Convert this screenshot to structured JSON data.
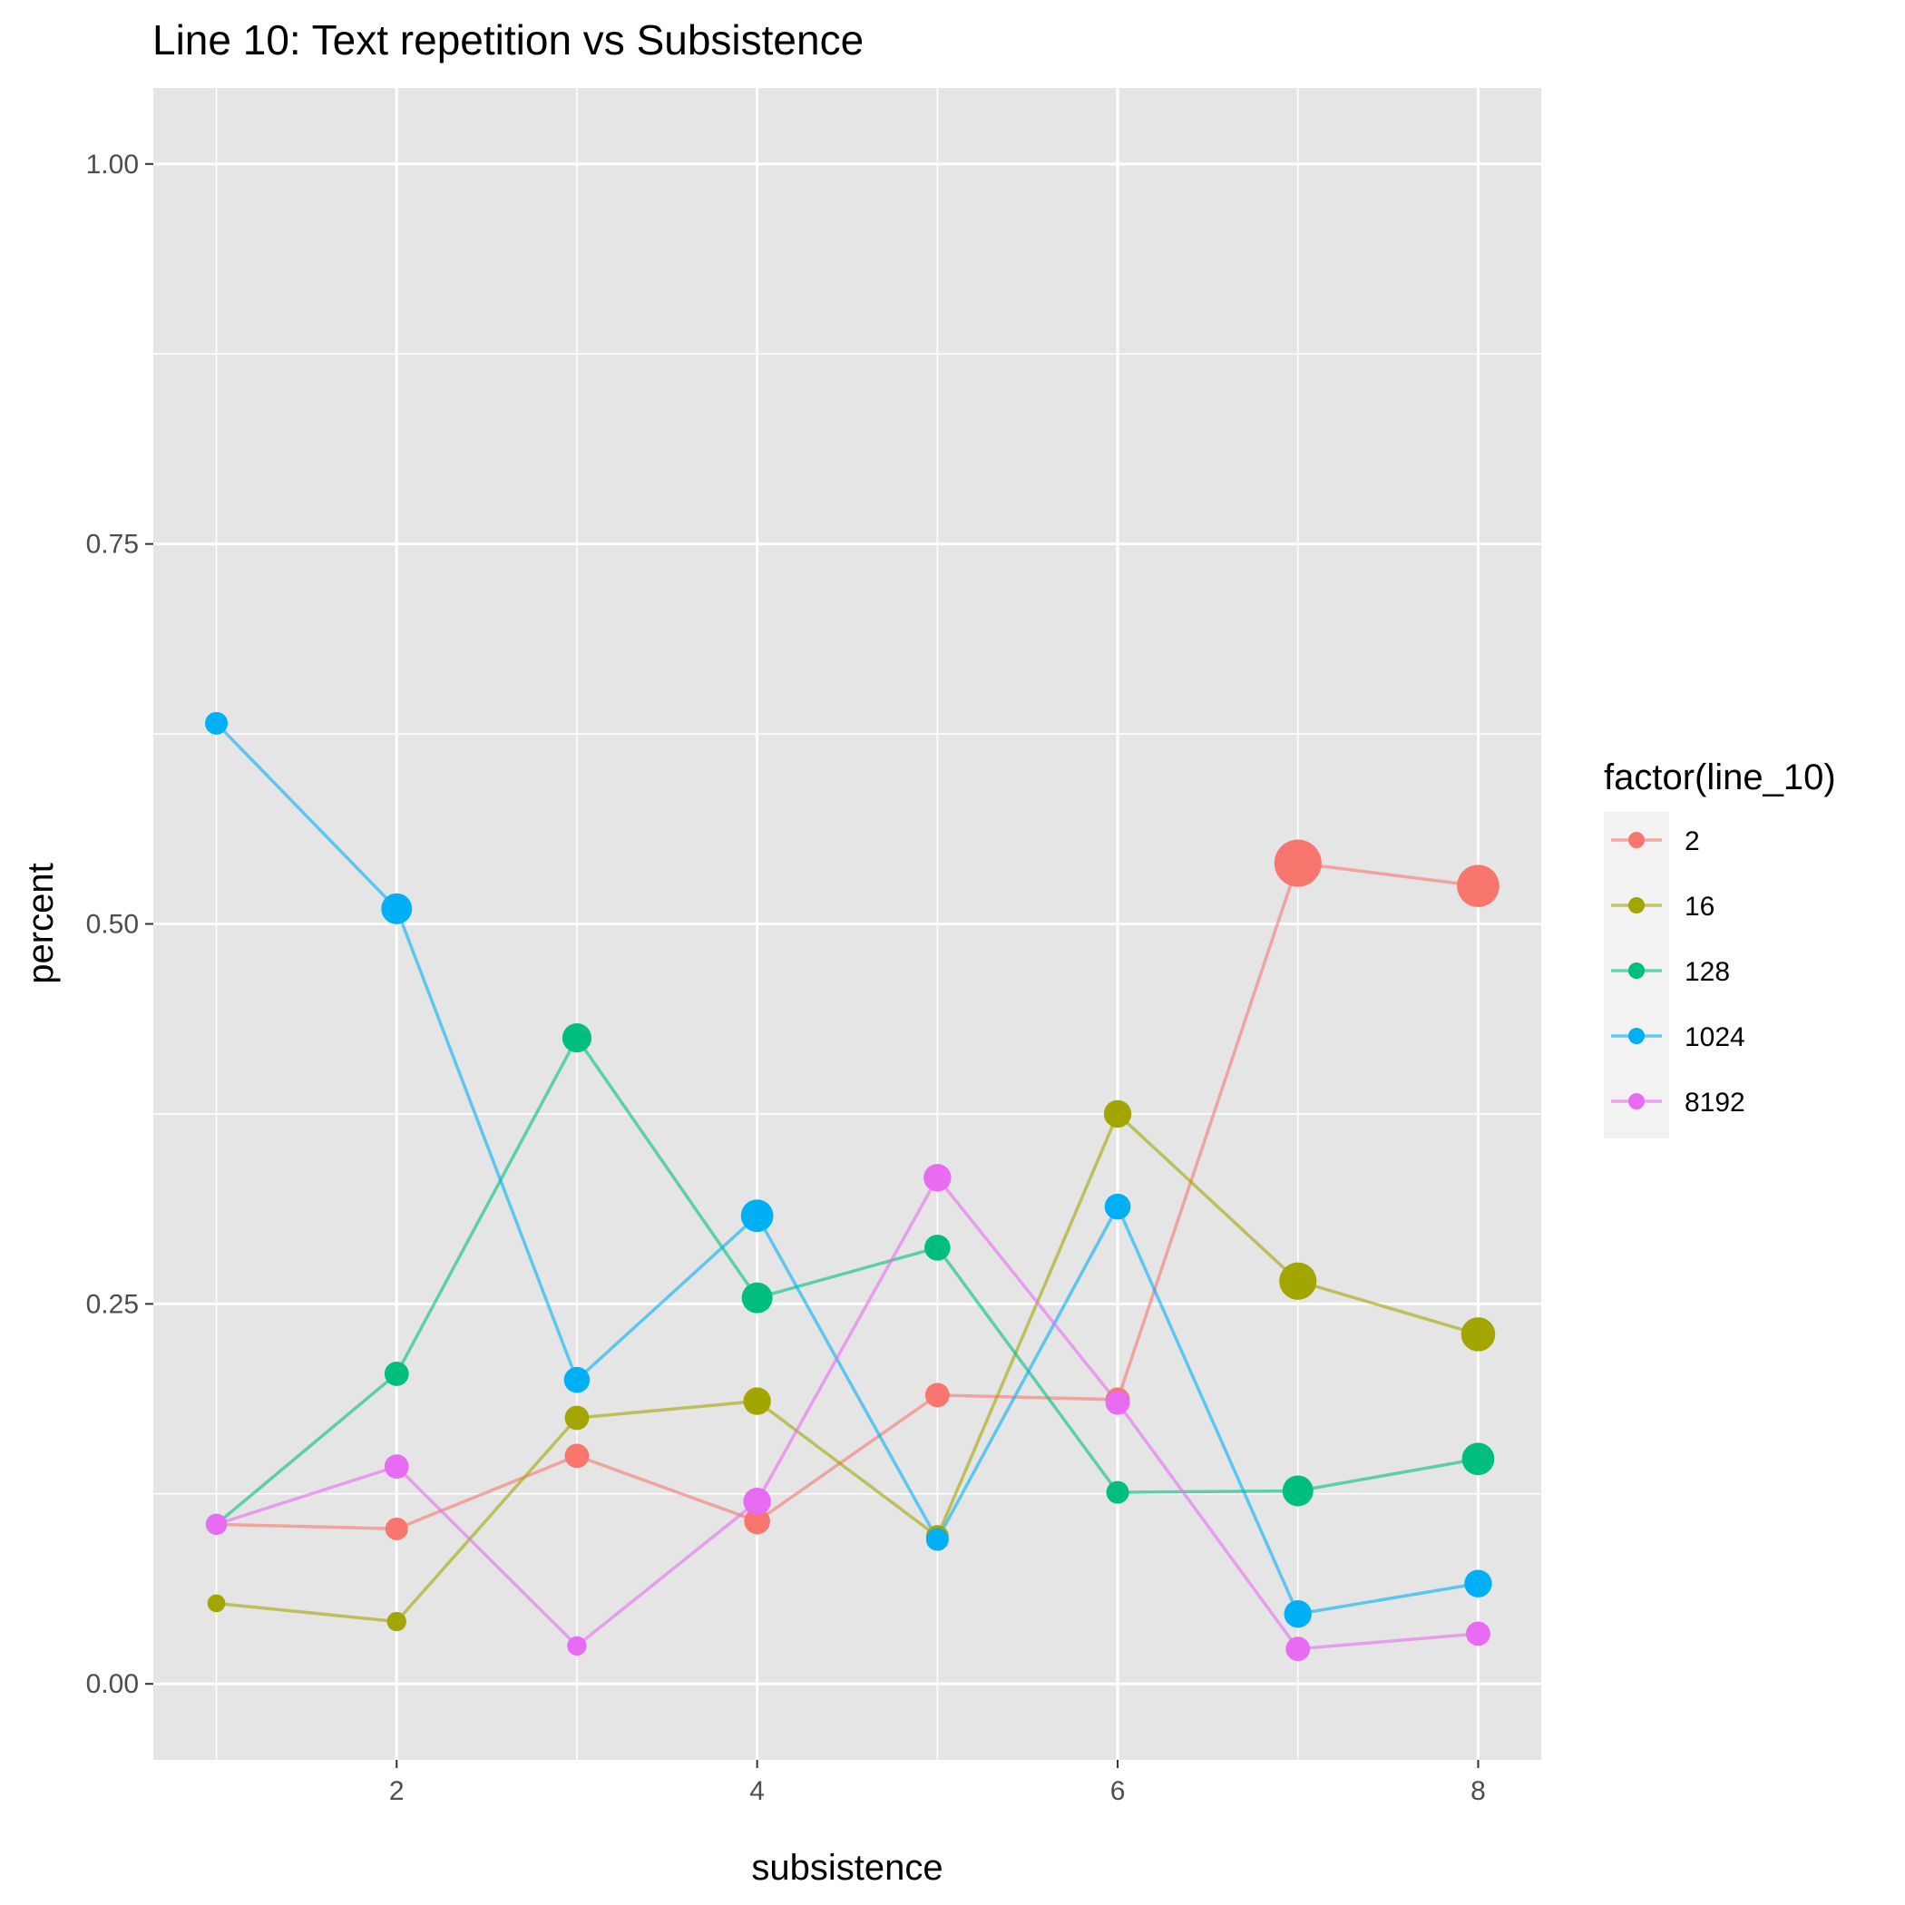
{
  "chart_data": {
    "type": "line",
    "title": "Line 10: Text repetition vs Subsistence",
    "xlabel": "subsistence",
    "ylabel": "percent",
    "xlim": [
      0.65,
      8.35
    ],
    "ylim": [
      -0.05,
      1.05
    ],
    "x_ticks": [
      2,
      4,
      6,
      8
    ],
    "x_tick_labels": [
      "2",
      "4",
      "6",
      "8"
    ],
    "y_ticks": [
      0.0,
      0.25,
      0.5,
      0.75,
      1.0
    ],
    "y_tick_labels": [
      "0.00",
      "0.25",
      "0.50",
      "0.75",
      "1.00"
    ],
    "grid": true,
    "legend": {
      "title": "factor(line_10)",
      "position": "right"
    },
    "x": [
      1,
      2,
      3,
      4,
      5,
      6,
      7,
      8
    ],
    "series": [
      {
        "name": "2",
        "color": "#F8766D",
        "values": [
          0.105,
          0.102,
          0.15,
          0.107,
          0.19,
          0.187,
          0.54,
          0.525
        ],
        "sizes": [
          0.2,
          0.25,
          0.3,
          0.35,
          0.3,
          0.3,
          1.0,
          0.85
        ]
      },
      {
        "name": "16",
        "color": "#A3A500",
        "values": [
          0.053,
          0.041,
          0.175,
          0.186,
          0.097,
          0.375,
          0.265,
          0.23
        ],
        "sizes": [
          0.1,
          0.15,
          0.3,
          0.4,
          0.25,
          0.4,
          0.7,
          0.6
        ]
      },
      {
        "name": "128",
        "color": "#00BF7D",
        "values": [
          0.105,
          0.204,
          0.425,
          0.254,
          0.287,
          0.126,
          0.127,
          0.148
        ],
        "sizes": [
          0.2,
          0.3,
          0.45,
          0.5,
          0.35,
          0.25,
          0.5,
          0.55
        ]
      },
      {
        "name": "1024",
        "color": "#00B0F6",
        "values": [
          0.632,
          0.51,
          0.2,
          0.308,
          0.095,
          0.314,
          0.046,
          0.066
        ],
        "sizes": [
          0.25,
          0.5,
          0.35,
          0.55,
          0.25,
          0.35,
          0.4,
          0.4
        ]
      },
      {
        "name": "8192",
        "color": "#E76BF3",
        "values": [
          0.105,
          0.143,
          0.025,
          0.12,
          0.333,
          0.185,
          0.023,
          0.033
        ],
        "sizes": [
          0.2,
          0.3,
          0.15,
          0.4,
          0.4,
          0.3,
          0.3,
          0.3
        ]
      }
    ]
  }
}
